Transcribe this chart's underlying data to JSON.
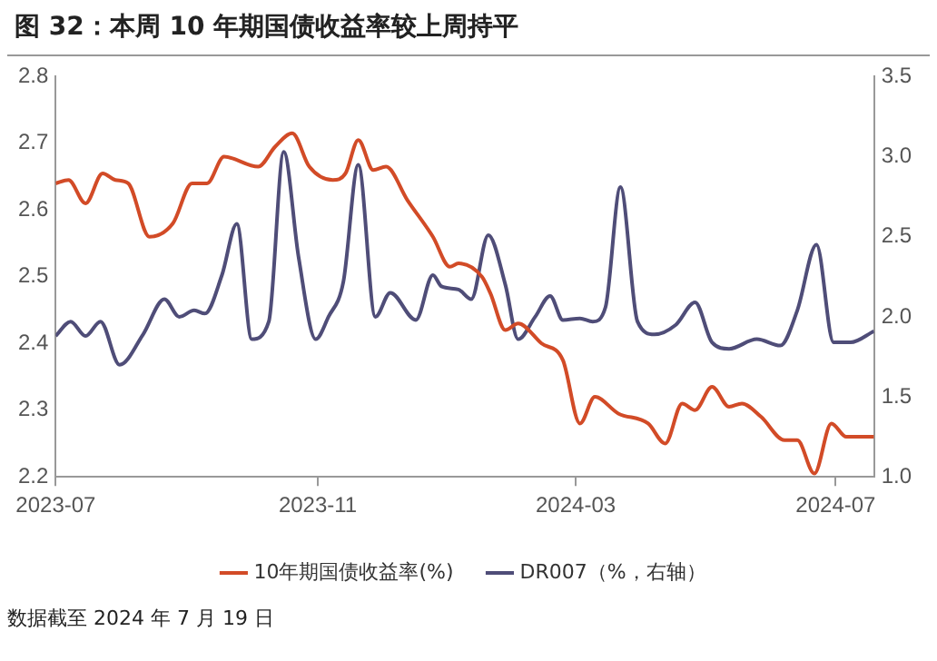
{
  "chart_data": {
    "type": "line",
    "title": "图 32：本周 10 年期国债收益率较上周持平",
    "annotations": [
      "数据截至 2024 年 7 月 19 日"
    ],
    "legend": "bottom",
    "grid": false,
    "marker": "none",
    "line_style": "solid",
    "xlim": [
      "2023-07-01",
      "2024-07-19"
    ],
    "xticks": [
      "2023-07",
      "2023-11",
      "2024-03",
      "2024-07"
    ],
    "ylim": [
      2.2,
      2.8
    ],
    "yticks": [
      2.2,
      2.3,
      2.4,
      2.5,
      2.6,
      2.7,
      2.8
    ],
    "y2lim": [
      1,
      3.5
    ],
    "y2ticks": [
      {
        "value": 1,
        "label": "1.0"
      },
      1.5,
      {
        "value": 2,
        "label": "2.0"
      },
      2.5,
      {
        "value": 3,
        "label": "3.0"
      },
      3.5
    ],
    "series": [
      {
        "name": "10年期国债收益率(%)",
        "color": "#d24b27",
        "x": [
          "2023-07-01",
          "2023-07-07",
          "2023-07-15",
          "2023-07-23",
          "2023-07-29",
          "2023-08-04",
          "2023-08-14",
          "2023-08-25",
          "2023-09-03",
          "2023-09-10",
          "2023-09-18",
          "2023-10-04",
          "2023-10-12",
          "2023-10-20",
          "2023-10-28",
          "2023-11-08",
          "2023-11-14",
          "2023-11-20",
          "2023-11-27",
          "2023-12-03",
          "2023-12-13",
          "2023-12-25",
          "2024-01-02",
          "2024-01-06",
          "2024-01-17",
          "2024-01-21",
          "2024-01-28",
          "2024-02-03",
          "2024-02-14",
          "2024-02-24",
          "2024-03-03",
          "2024-03-10",
          "2024-03-21",
          "2024-04-04",
          "2024-04-12",
          "2024-04-20",
          "2024-04-26",
          "2024-05-04",
          "2024-05-12",
          "2024-05-18",
          "2024-05-27",
          "2024-06-07",
          "2024-06-13",
          "2024-06-21",
          "2024-06-29",
          "2024-07-06",
          "2024-07-14",
          "2024-07-19"
        ],
        "values": [
          2.64,
          2.645,
          2.61,
          2.655,
          2.645,
          2.64,
          2.56,
          2.58,
          2.64,
          2.64,
          2.68,
          2.665,
          2.695,
          2.715,
          2.665,
          2.645,
          2.655,
          2.705,
          2.66,
          2.665,
          2.615,
          2.56,
          2.515,
          2.52,
          2.5,
          2.475,
          2.42,
          2.43,
          2.4,
          2.375,
          2.28,
          2.32,
          2.295,
          2.28,
          2.25,
          2.31,
          2.3,
          2.335,
          2.305,
          2.31,
          2.29,
          2.255,
          2.255,
          2.205,
          2.28,
          2.26,
          2.26,
          2.26
        ]
      },
      {
        "name": "DR007（%，右轴）",
        "color": "#4f4d78",
        "axis": "y2",
        "x": [
          "2023-07-01",
          "2023-07-08",
          "2023-07-15",
          "2023-07-22",
          "2023-07-31",
          "2023-08-11",
          "2023-08-21",
          "2023-08-28",
          "2023-09-04",
          "2023-09-09",
          "2023-09-17",
          "2023-09-24",
          "2023-10-01",
          "2023-10-09",
          "2023-10-16",
          "2023-10-23",
          "2023-10-31",
          "2023-11-06",
          "2023-11-13",
          "2023-11-20",
          "2023-11-28",
          "2023-12-05",
          "2023-12-17",
          "2023-12-25",
          "2023-12-29",
          "2024-01-06",
          "2024-01-12",
          "2024-01-20",
          "2024-01-28",
          "2024-02-03",
          "2024-02-11",
          "2024-02-18",
          "2024-02-24",
          "2024-03-03",
          "2024-03-09",
          "2024-03-15",
          "2024-03-22",
          "2024-03-30",
          "2024-04-07",
          "2024-04-17",
          "2024-04-26",
          "2024-05-04",
          "2024-05-12",
          "2024-05-25",
          "2024-06-05",
          "2024-06-13",
          "2024-06-22",
          "2024-06-30",
          "2024-07-08",
          "2024-07-19"
        ],
        "values": [
          1.88,
          1.97,
          1.88,
          1.97,
          1.7,
          1.89,
          2.11,
          2.0,
          2.04,
          2.02,
          2.26,
          2.58,
          1.86,
          1.97,
          3.03,
          2.37,
          1.86,
          2.0,
          2.22,
          2.95,
          2.0,
          2.15,
          1.98,
          2.26,
          2.19,
          2.17,
          2.11,
          2.51,
          2.2,
          1.86,
          2.0,
          2.13,
          1.98,
          1.99,
          1.97,
          2.06,
          2.81,
          1.97,
          1.89,
          1.95,
          2.09,
          1.84,
          1.8,
          1.86,
          1.82,
          2.04,
          2.45,
          1.84,
          1.84,
          1.91
        ]
      }
    ]
  }
}
